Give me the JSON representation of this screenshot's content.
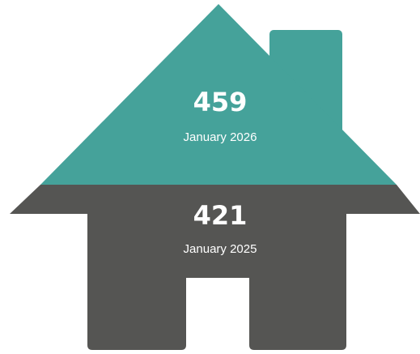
{
  "chart_data": {
    "type": "house",
    "categories": [
      "January 2026",
      "January 2025"
    ],
    "values": [
      459,
      421
    ],
    "colors": [
      "#45a29a",
      "#555553"
    ]
  }
}
